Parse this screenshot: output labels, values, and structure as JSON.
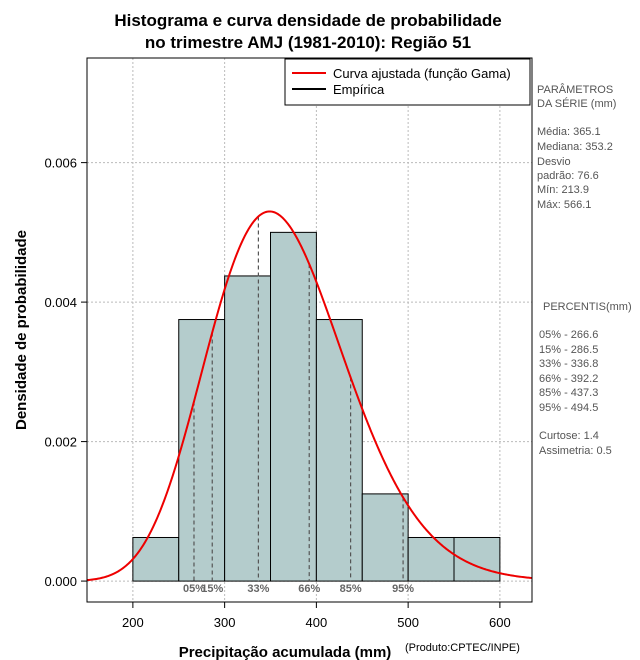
{
  "chart_data": {
    "type": "histogram",
    "title_lines": [
      "Histograma e curva densidade de probabilidade",
      "no trimestre AMJ (1981-2010): Região 51"
    ],
    "xlabel": "Precipitação acumulada (mm)",
    "ylabel": "Densidade de probabilidade",
    "product_note": "(Produto:CPTEC/INPE)",
    "xlim": [
      150,
      635
    ],
    "ylim": [
      -0.0003,
      0.0075
    ],
    "x_ticks": [
      200,
      300,
      400,
      500,
      600
    ],
    "x_tick_labels": [
      "200",
      "300",
      "400",
      "500",
      "600"
    ],
    "y_ticks": [
      0.0,
      0.002,
      0.004,
      0.006
    ],
    "y_tick_labels": [
      "0.000",
      "0.002",
      "0.004",
      "0.006"
    ],
    "grid": true,
    "bins": [
      {
        "from": 200,
        "to": 250,
        "density": 0.000625
      },
      {
        "from": 250,
        "to": 300,
        "density": 0.00375
      },
      {
        "from": 300,
        "to": 350,
        "density": 0.004375
      },
      {
        "from": 350,
        "to": 400,
        "density": 0.005
      },
      {
        "from": 400,
        "to": 450,
        "density": 0.00375
      },
      {
        "from": 450,
        "to": 500,
        "density": 0.00125
      },
      {
        "from": 500,
        "to": 550,
        "density": 0.000625
      },
      {
        "from": 550,
        "to": 600,
        "density": 0.000625
      }
    ],
    "gamma_fit": {
      "mean": 365.1,
      "sd": 76.6,
      "peak_density": 0.0053
    },
    "percentile_lines": [
      {
        "label": "05%",
        "x": 266.6
      },
      {
        "label": "15%",
        "x": 286.5
      },
      {
        "label": "33%",
        "x": 336.8
      },
      {
        "label": "66%",
        "x": 392.2
      },
      {
        "label": "85%",
        "x": 437.3
      },
      {
        "label": "95%",
        "x": 494.5
      }
    ],
    "legend": {
      "placement": "top-right",
      "entries": [
        {
          "label": "Curva ajustada (função Gama)",
          "color": "#ee0000"
        },
        {
          "label": "Empírica",
          "color": "#000000"
        }
      ]
    },
    "colors": {
      "bar_fill": "#b4cccc",
      "curve": "#ee0000",
      "grid": "#bbbbbb"
    }
  },
  "side_panel": {
    "params_header": [
      "PARÂMETROS",
      " DA SÉRIE (mm)"
    ],
    "params": [
      "Média:  365.1",
      "Mediana:  353.2",
      "Desvio",
      "padrão:  76.6",
      "Mín:  213.9",
      "Máx:  566.1"
    ],
    "percentis_header": "PERCENTIS(mm)",
    "percentis": [
      "05% -   266.6",
      "15% -   286.5",
      "33% -   336.8",
      "66% -   392.2",
      "85% -   437.3",
      "95% -   494.5"
    ],
    "extra": [
      "Curtose:  1.4",
      "Assimetria:  0.5"
    ]
  }
}
